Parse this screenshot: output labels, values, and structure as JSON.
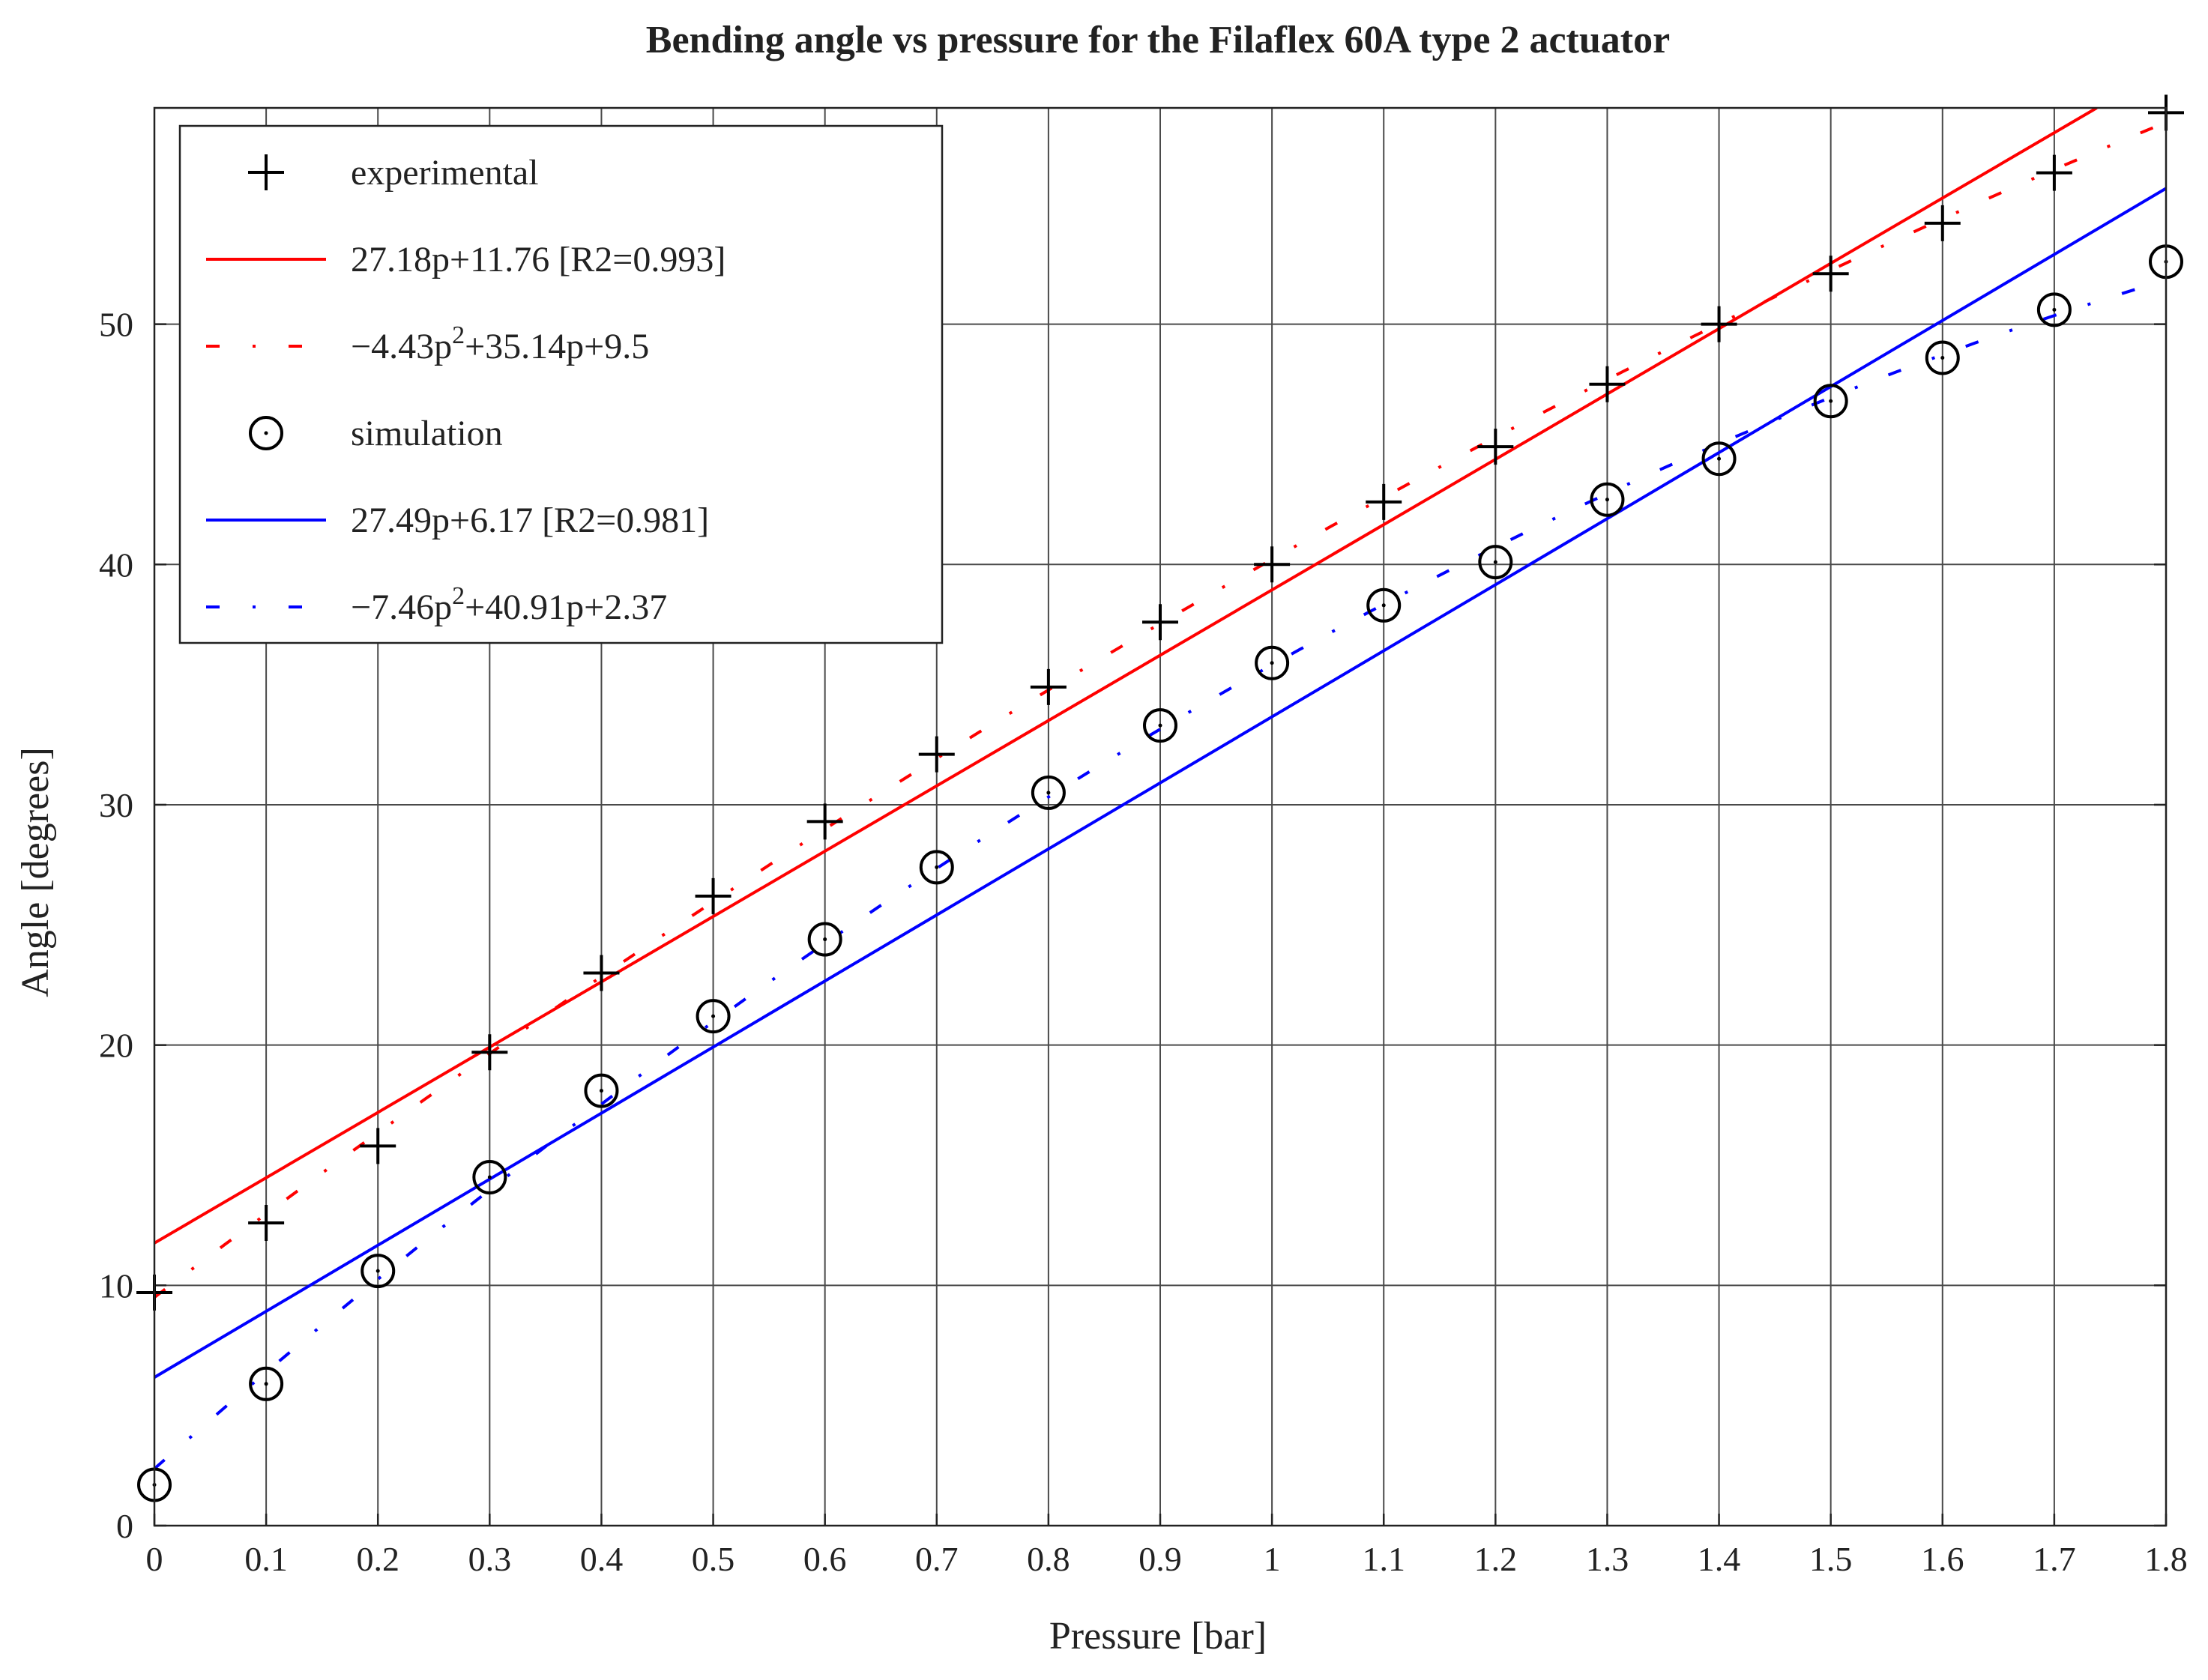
{
  "chart_data": {
    "type": "scatter",
    "title": "Bending angle vs pressure for the Filaflex 60A type 2 actuator",
    "xlabel": "Pressure [bar]",
    "ylabel": "Angle [degrees]",
    "xlim": [
      0,
      1.8
    ],
    "ylim": [
      0,
      59
    ],
    "xticks": [
      0,
      0.1,
      0.2,
      0.3,
      0.4,
      0.5,
      0.6,
      0.7,
      0.8,
      0.9,
      1,
      1.1,
      1.2,
      1.3,
      1.4,
      1.5,
      1.6,
      1.7,
      1.8
    ],
    "xtick_labels": [
      "0",
      "0.1",
      "0.2",
      "0.3",
      "0.4",
      "0.5",
      "0.6",
      "0.7",
      "0.8",
      "0.9",
      "1",
      "1.1",
      "1.2",
      "1.3",
      "1.4",
      "1.5",
      "1.6",
      "1.7",
      "1.8"
    ],
    "yticks": [
      0,
      10,
      20,
      30,
      40,
      50
    ],
    "ytick_labels": [
      "0",
      "10",
      "20",
      "30",
      "40",
      "50"
    ],
    "grid": true,
    "legend_position": "top-left",
    "series": [
      {
        "name": "experimental",
        "kind": "markers",
        "marker": "plus",
        "color": "#000000",
        "x": [
          0,
          0.1,
          0.2,
          0.3,
          0.4,
          0.5,
          0.6,
          0.7,
          0.8,
          0.9,
          1.0,
          1.1,
          1.2,
          1.3,
          1.4,
          1.5,
          1.6,
          1.7,
          1.8
        ],
        "y": [
          9.7,
          12.6,
          15.8,
          19.7,
          23.0,
          26.2,
          29.3,
          32.1,
          34.9,
          37.6,
          40.0,
          42.6,
          44.9,
          47.5,
          50.0,
          52.1,
          54.2,
          56.3,
          58.8
        ]
      },
      {
        "name": "27.18p+11.76 [R2=0.993]",
        "kind": "linear",
        "coefficients": [
          27.18,
          11.76
        ],
        "style": "solid",
        "color": "#ff0000"
      },
      {
        "name": "−4.43p²+35.14p+9.5",
        "name_parts": [
          "−4.43p",
          "2",
          "+35.14p+9.5"
        ],
        "kind": "quadratic",
        "coefficients": [
          -4.43,
          35.14,
          9.5
        ],
        "style": "dashdot",
        "color": "#ff0000"
      },
      {
        "name": "simulation",
        "kind": "markers",
        "marker": "circle-dot",
        "color": "#000000",
        "x": [
          0,
          0.1,
          0.2,
          0.3,
          0.4,
          0.5,
          0.6,
          0.7,
          0.8,
          0.9,
          1.0,
          1.1,
          1.2,
          1.3,
          1.4,
          1.5,
          1.6,
          1.7,
          1.8
        ],
        "y": [
          1.7,
          5.9,
          10.6,
          14.5,
          18.1,
          21.2,
          24.4,
          27.4,
          30.5,
          33.3,
          35.9,
          38.3,
          40.1,
          42.7,
          44.4,
          46.8,
          48.6,
          50.6,
          52.6
        ]
      },
      {
        "name": "27.49p+6.17 [R2=0.981]",
        "kind": "linear",
        "coefficients": [
          27.49,
          6.17
        ],
        "style": "solid",
        "color": "#0000ff"
      },
      {
        "name": "−7.46p²+40.91p+2.37",
        "name_parts": [
          "−7.46p",
          "2",
          "+40.91p+2.37"
        ],
        "kind": "quadratic",
        "coefficients": [
          -7.46,
          40.91,
          2.37
        ],
        "style": "dashdot",
        "color": "#0000ff"
      }
    ]
  }
}
